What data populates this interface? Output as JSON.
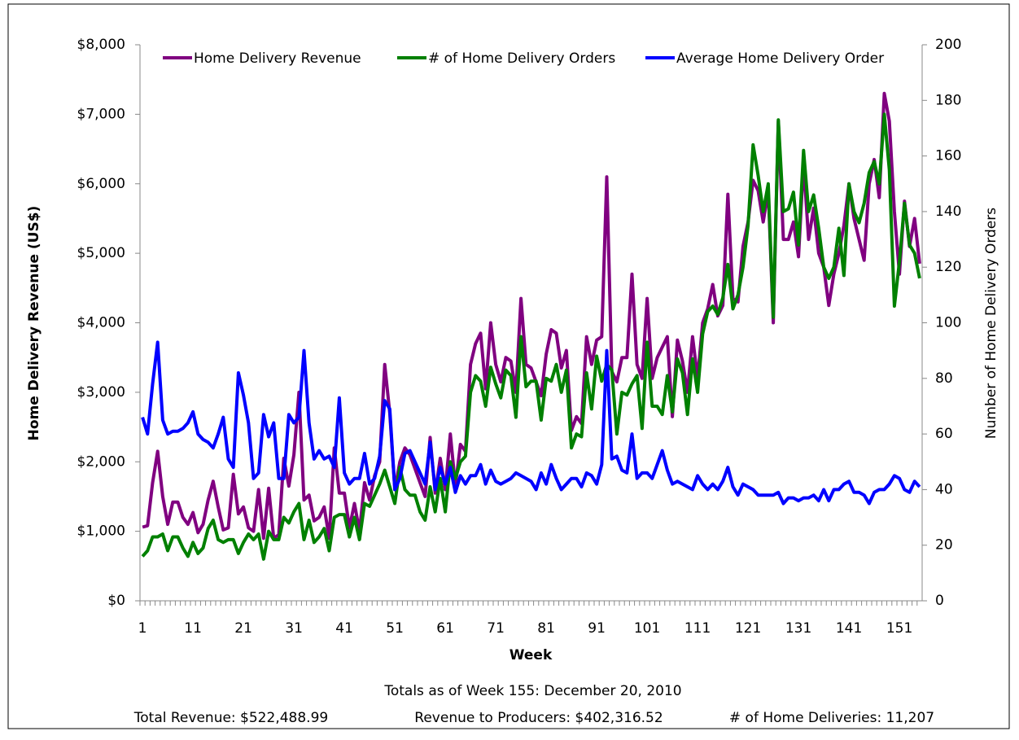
{
  "chart_data": {
    "type": "line",
    "ylabel": "Home Delivery Revenue (US$)",
    "y2label": "Number of Home Delivery Orders",
    "xlabel": "Week",
    "annotations": [
      "Totals as of  Week 155: December 20, 2010",
      "Total Revenue: $522,488.99",
      "Revenue to Producers: $402,316.52",
      "# of Home Deliveries: 11,207"
    ],
    "legend": "top",
    "x": [
      1,
      2,
      3,
      4,
      5,
      6,
      7,
      8,
      9,
      10,
      11,
      12,
      13,
      14,
      15,
      16,
      17,
      18,
      19,
      20,
      21,
      22,
      23,
      24,
      25,
      26,
      27,
      28,
      29,
      30,
      31,
      32,
      33,
      34,
      35,
      36,
      37,
      38,
      39,
      40,
      41,
      42,
      43,
      44,
      45,
      46,
      47,
      48,
      49,
      50,
      51,
      52,
      53,
      54,
      55,
      56,
      57,
      58,
      59,
      60,
      61,
      62,
      63,
      64,
      65,
      66,
      67,
      68,
      69,
      70,
      71,
      72,
      73,
      74,
      75,
      76,
      77,
      78,
      79,
      80,
      81,
      82,
      83,
      84,
      85,
      86,
      87,
      88,
      89,
      90,
      91,
      92,
      93,
      94,
      95,
      96,
      97,
      98,
      99,
      100,
      101,
      102,
      103,
      104,
      105,
      106,
      107,
      108,
      109,
      110,
      111,
      112,
      113,
      114,
      115,
      116,
      117,
      118,
      119,
      120,
      121,
      122,
      123,
      124,
      125,
      126,
      127,
      128,
      129,
      130,
      131,
      132,
      133,
      134,
      135,
      136,
      137,
      138,
      139,
      140,
      141,
      142,
      143,
      144,
      145,
      146,
      147,
      148,
      149,
      150,
      151,
      152,
      153,
      154,
      155
    ],
    "xlim": [
      0.5,
      155.5
    ],
    "xticks": [
      1,
      11,
      21,
      31,
      41,
      51,
      61,
      71,
      81,
      91,
      101,
      111,
      121,
      131,
      141,
      151
    ],
    "ylim": [
      0,
      8000
    ],
    "yticks": [
      {
        "value": 0,
        "label": "$0"
      },
      {
        "value": 1000,
        "label": "$1,000"
      },
      {
        "value": 2000,
        "label": "$2,000"
      },
      {
        "value": 3000,
        "label": "$3,000"
      },
      {
        "value": 4000,
        "label": "$4,000"
      },
      {
        "value": 5000,
        "label": "$5,000"
      },
      {
        "value": 6000,
        "label": "$6,000"
      },
      {
        "value": 7000,
        "label": "$7,000"
      },
      {
        "value": 8000,
        "label": "$8,000"
      }
    ],
    "y2lim": [
      0,
      200
    ],
    "y2ticks": [
      0,
      20,
      40,
      60,
      80,
      100,
      120,
      140,
      160,
      180,
      200
    ],
    "series": [
      {
        "name": "Home Delivery Revenue",
        "color": "#800080",
        "values": [
          1060,
          1080,
          1700,
          2150,
          1500,
          1100,
          1420,
          1420,
          1200,
          1100,
          1270,
          980,
          1100,
          1450,
          1720,
          1350,
          1020,
          1050,
          1820,
          1250,
          1350,
          1050,
          1000,
          1600,
          900,
          1620,
          900,
          950,
          2050,
          1650,
          2100,
          3000,
          1450,
          1520,
          1150,
          1200,
          1350,
          900,
          2200,
          1550,
          1550,
          1050,
          1400,
          1000,
          1700,
          1450,
          1800,
          2000,
          3400,
          2700,
          1600,
          2000,
          2200,
          2100,
          1900,
          1700,
          1500,
          2350,
          1550,
          2050,
          1600,
          2400,
          1650,
          2250,
          2150,
          3400,
          3700,
          3850,
          3050,
          4000,
          3400,
          3150,
          3500,
          3450,
          3000,
          4350,
          3400,
          3350,
          3150,
          2950,
          3550,
          3900,
          3850,
          3350,
          3600,
          2450,
          2650,
          2550,
          3800,
          3400,
          3750,
          3800,
          6100,
          3300,
          3150,
          3500,
          3500,
          4700,
          3400,
          3200,
          4350,
          3200,
          3500,
          3650,
          3800,
          2650,
          3750,
          3450,
          3000,
          3800,
          3200,
          4000,
          4200,
          4550,
          4100,
          4250,
          5850,
          4350,
          4300,
          5100,
          5450,
          6050,
          5900,
          5450,
          5900,
          4000,
          6900,
          5200,
          5200,
          5450,
          4950,
          6300,
          5200,
          5650,
          5000,
          4800,
          4250,
          4700,
          5000,
          5400,
          6000,
          5500,
          5200,
          4900,
          6000,
          6350,
          5800,
          7300,
          6900,
          5600,
          4700,
          5750,
          5100,
          5500,
          4850
        ]
      },
      {
        "name": "# of Home Delivery Orders",
        "color": "#008000",
        "axis": "y2",
        "values": [
          16,
          18,
          23,
          23,
          24,
          18,
          23,
          23,
          19,
          16,
          21,
          17,
          19,
          26,
          29,
          22,
          21,
          22,
          22,
          17,
          21,
          24,
          22,
          24,
          15,
          25,
          22,
          22,
          30,
          28,
          32,
          35,
          22,
          29,
          21,
          23,
          26,
          18,
          30,
          31,
          31,
          23,
          30,
          22,
          35,
          34,
          38,
          42,
          47,
          41,
          35,
          48,
          40,
          38,
          38,
          32,
          29,
          41,
          32,
          44,
          32,
          50,
          44,
          50,
          52,
          75,
          81,
          79,
          70,
          84,
          78,
          73,
          83,
          81,
          66,
          95,
          77,
          79,
          79,
          65,
          80,
          79,
          85,
          75,
          83,
          55,
          60,
          59,
          82,
          69,
          88,
          79,
          85,
          83,
          60,
          75,
          74,
          78,
          81,
          62,
          93,
          70,
          70,
          67,
          81,
          68,
          87,
          82,
          67,
          87,
          75,
          96,
          104,
          106,
          103,
          109,
          121,
          105,
          110,
          120,
          135,
          164,
          153,
          140,
          150,
          102,
          173,
          140,
          141,
          147,
          128,
          162,
          140,
          146,
          134,
          120,
          116,
          120,
          134,
          117,
          150,
          140,
          136,
          143,
          154,
          158,
          150,
          175,
          155,
          106,
          122,
          143,
          128,
          125,
          116
        ]
      },
      {
        "name": "Average Home Delivery Order",
        "color": "#0000ff",
        "axis": "y2",
        "values": [
          66,
          60,
          78,
          93,
          65,
          60,
          61,
          61,
          62,
          64,
          68,
          60,
          58,
          57,
          55,
          60,
          66,
          51,
          48,
          82,
          74,
          64,
          44,
          46,
          67,
          59,
          64,
          44,
          44,
          67,
          64,
          66,
          90,
          64,
          51,
          54,
          51,
          52,
          48,
          73,
          46,
          42,
          44,
          44,
          53,
          42,
          44,
          52,
          72,
          69,
          40,
          44,
          53,
          54,
          50,
          46,
          42,
          57,
          40,
          48,
          42,
          48,
          39,
          45,
          42,
          45,
          45,
          49,
          42,
          47,
          43,
          42,
          43,
          44,
          46,
          45,
          44,
          43,
          40,
          46,
          42,
          49,
          44,
          40,
          42,
          44,
          44,
          41,
          46,
          45,
          42,
          49,
          90,
          51,
          52,
          47,
          46,
          60,
          44,
          46,
          46,
          44,
          49,
          54,
          47,
          42,
          43,
          42,
          41,
          40,
          45,
          42,
          40,
          42,
          40,
          43,
          48,
          41,
          38,
          42,
          41,
          40,
          38,
          38,
          38,
          38,
          39,
          35,
          37,
          37,
          36,
          37,
          37,
          38,
          36,
          40,
          36,
          40,
          40,
          42,
          43,
          39,
          39,
          38,
          35,
          39,
          40,
          40,
          42,
          45,
          44,
          40,
          39,
          43,
          41
        ]
      }
    ]
  }
}
